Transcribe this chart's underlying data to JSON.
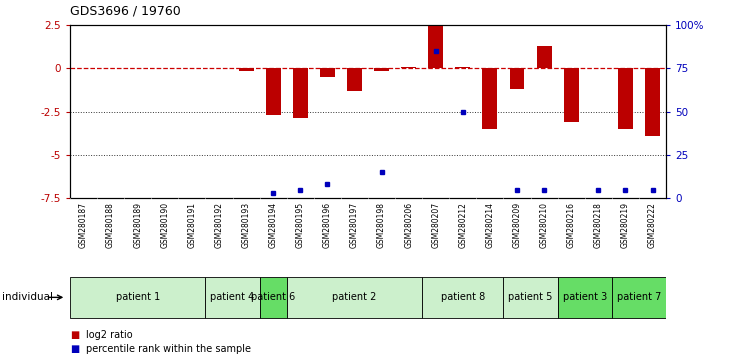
{
  "title": "GDS3696 / 19760",
  "samples": [
    "GSM280187",
    "GSM280188",
    "GSM280189",
    "GSM280190",
    "GSM280191",
    "GSM280192",
    "GSM280193",
    "GSM280194",
    "GSM280195",
    "GSM280196",
    "GSM280197",
    "GSM280198",
    "GSM280206",
    "GSM280207",
    "GSM280212",
    "GSM280214",
    "GSM280209",
    "GSM280210",
    "GSM280216",
    "GSM280218",
    "GSM280219",
    "GSM280222"
  ],
  "log2_ratio": [
    0.0,
    0.0,
    0.0,
    0.0,
    0.0,
    0.0,
    -0.15,
    -2.7,
    -2.85,
    -0.5,
    -1.3,
    -0.15,
    0.08,
    2.45,
    0.08,
    -3.5,
    -1.2,
    1.25,
    -3.1,
    0.0,
    -3.5,
    -3.9
  ],
  "percentile_rank": [
    null,
    null,
    null,
    null,
    null,
    null,
    null,
    3,
    5,
    8,
    null,
    15,
    null,
    85,
    50,
    null,
    5,
    5,
    null,
    5,
    5,
    5
  ],
  "patients": [
    {
      "label": "patient 1",
      "indices": [
        0,
        1,
        2,
        3,
        4
      ],
      "color": "#ccf0cc"
    },
    {
      "label": "patient 4",
      "indices": [
        5,
        6
      ],
      "color": "#ccf0cc"
    },
    {
      "label": "patient 6",
      "indices": [
        7
      ],
      "color": "#66dd66"
    },
    {
      "label": "patient 2",
      "indices": [
        8,
        9,
        10,
        11,
        12
      ],
      "color": "#ccf0cc"
    },
    {
      "label": "patient 8",
      "indices": [
        13,
        14,
        15
      ],
      "color": "#ccf0cc"
    },
    {
      "label": "patient 5",
      "indices": [
        16,
        17
      ],
      "color": "#ccf0cc"
    },
    {
      "label": "patient 3",
      "indices": [
        18,
        19
      ],
      "color": "#66dd66"
    },
    {
      "label": "patient 7",
      "indices": [
        20,
        21
      ],
      "color": "#66dd66"
    }
  ],
  "ylim_left": [
    -7.5,
    2.5
  ],
  "ylim_right": [
    0,
    100
  ],
  "yticks_left": [
    2.5,
    0.0,
    -2.5,
    -5.0,
    -7.5
  ],
  "yticks_right": [
    100,
    75,
    50,
    25,
    0
  ],
  "ytick_labels_right": [
    "100%",
    "75",
    "50",
    "25",
    "0"
  ],
  "bar_color": "#bb0000",
  "dot_color": "#0000bb",
  "zero_line_color": "#cc0000",
  "grid_color": "#333333",
  "bg_color": "#ffffff",
  "tick_bg_color": "#c8c8c8"
}
